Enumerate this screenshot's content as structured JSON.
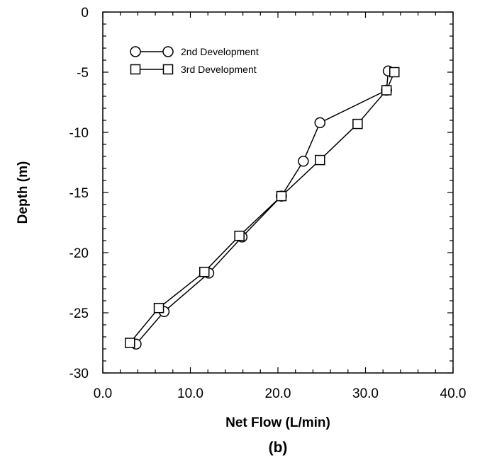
{
  "chart_data": {
    "type": "line",
    "xlabel": "Net Flow (L/min)",
    "ylabel": "Depth (m)",
    "caption": "(b)",
    "xlim": [
      0,
      40
    ],
    "ylim": [
      -30,
      0
    ],
    "xticks": [
      0,
      10,
      20,
      30,
      40
    ],
    "xtick_labels": [
      "0.0",
      "10.0",
      "20.0",
      "30.0",
      "40.0"
    ],
    "yticks": [
      0,
      -5,
      -10,
      -15,
      -20,
      -25,
      -30
    ],
    "ytick_labels": [
      "0",
      "-5",
      "-10",
      "-15",
      "-20",
      "-25",
      "-30"
    ],
    "grid": false,
    "legend_position": "top-left",
    "series": [
      {
        "name": "2nd Development",
        "marker": "circle",
        "points": [
          [
            32.6,
            -4.9
          ],
          [
            32.4,
            -6.5
          ],
          [
            24.8,
            -9.2
          ],
          [
            22.9,
            -12.4
          ],
          [
            20.4,
            -15.3
          ],
          [
            15.9,
            -18.7
          ],
          [
            12.1,
            -21.7
          ],
          [
            7.0,
            -24.9
          ],
          [
            3.8,
            -27.6
          ]
        ]
      },
      {
        "name": "3rd Development",
        "marker": "square",
        "points": [
          [
            33.3,
            -5.0
          ],
          [
            32.4,
            -6.5
          ],
          [
            29.1,
            -9.3
          ],
          [
            24.8,
            -12.3
          ],
          [
            20.4,
            -15.3
          ],
          [
            15.6,
            -18.6
          ],
          [
            11.6,
            -21.6
          ],
          [
            6.4,
            -24.6
          ],
          [
            3.1,
            -27.5
          ]
        ]
      }
    ]
  }
}
